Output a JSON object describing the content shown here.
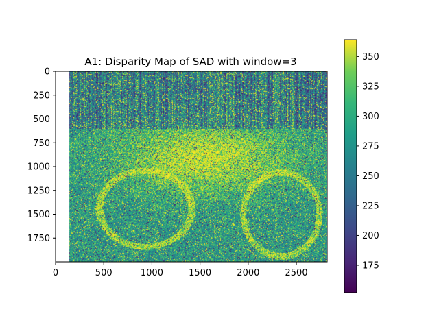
{
  "chart_data": {
    "type": "heatmap",
    "title": "A1: Disparity Map of SAD with window=3",
    "xlabel": "",
    "ylabel": "",
    "image_extent": {
      "x": [
        0,
        2820
      ],
      "y": [
        0,
        2000
      ]
    },
    "x_ticks": [
      0,
      500,
      1000,
      1500,
      2000,
      2500
    ],
    "y_ticks": [
      0,
      250,
      500,
      750,
      1000,
      1250,
      1500,
      1750
    ],
    "blank_left_columns": 145,
    "colorbar": {
      "colormap": "viridis",
      "range": [
        152,
        364
      ],
      "ticks": [
        175,
        200,
        225,
        250,
        275,
        300,
        325,
        350
      ]
    },
    "grid": false,
    "content": "disparity map of a motorcycle scene, noisy viridis values"
  },
  "colors": {
    "viridis_dark": "#440154",
    "viridis_mid": "#21918c",
    "viridis_bright": "#fde725"
  }
}
